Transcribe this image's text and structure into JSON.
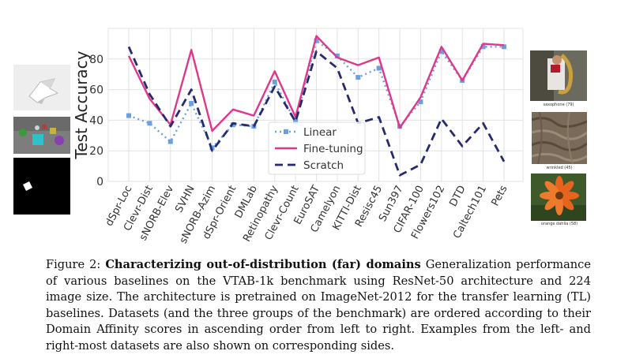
{
  "chart_data": {
    "type": "line",
    "ylabel": "Test Accuracy",
    "ylim": [
      0,
      100
    ],
    "yticks": [
      0,
      20,
      40,
      60,
      80
    ],
    "grid": true,
    "legend_position": "center",
    "categories": [
      "dSpr-Loc",
      "Clevr-Dist",
      "sNORB-Elev",
      "SVHN",
      "sNORB-Azim",
      "dSpr-Orient",
      "DMLab",
      "Retinopathy",
      "Clevr-Count",
      "EuroSAT",
      "Camelyon",
      "KITTI-Dist",
      "Resisc45",
      "Sun397",
      "CIFAR-100",
      "Flowers102",
      "DTD",
      "Caltech101",
      "Pets"
    ],
    "series": [
      {
        "name": "Linear",
        "color": "#6a9fe0",
        "style": "dotted",
        "marker": "square",
        "values": [
          43,
          38,
          26,
          51,
          22,
          37,
          36,
          65,
          39,
          92,
          82,
          68,
          74,
          36,
          52,
          85,
          66,
          88,
          88
        ]
      },
      {
        "name": "Fine-tuning",
        "color": "#e0378a",
        "style": "solid",
        "marker": "none",
        "values": [
          82,
          54,
          37,
          86,
          33,
          47,
          43,
          72,
          42,
          95,
          81,
          76,
          81,
          35,
          55,
          88,
          66,
          90,
          89
        ]
      },
      {
        "name": "Scratch",
        "color": "#262a6e",
        "style": "dashed",
        "marker": "none",
        "values": [
          88,
          57,
          36,
          60,
          20,
          38,
          36,
          62,
          39,
          85,
          74,
          38,
          42,
          4,
          11,
          41,
          23,
          38,
          13
        ]
      }
    ]
  },
  "thumbnails": {
    "left": [
      {
        "name": "dsprites-example",
        "desc": "white 3D shape on light background"
      },
      {
        "name": "clevr-example",
        "desc": "colored 3D objects on gray floor"
      },
      {
        "name": "snorb-example",
        "desc": "small white square on black"
      }
    ],
    "right": [
      {
        "name": "saxophone-example",
        "label": "saxophone (79)"
      },
      {
        "name": "wrinkled-example",
        "label": "wrinkled (45)"
      },
      {
        "name": "orange-dahlia-example",
        "label": "orange dahlia (58)"
      }
    ]
  },
  "caption": {
    "prefix": "Figure 2: ",
    "bold": "Characterizing out-of-distribution (far) domains",
    "text": " Generalization performance of various baselines on the VTAB-1k benchmark using ResNet-50 architecture and 224 image size. The architecture is pretrained on ImageNet-2012 for the transfer learning (TL) baselines. Datasets (and the three groups of the benchmark) are ordered according to their Domain Affinity scores in ascending order from left to right. Examples from the left- and right-most datasets are also shown on corresponding sides."
  }
}
